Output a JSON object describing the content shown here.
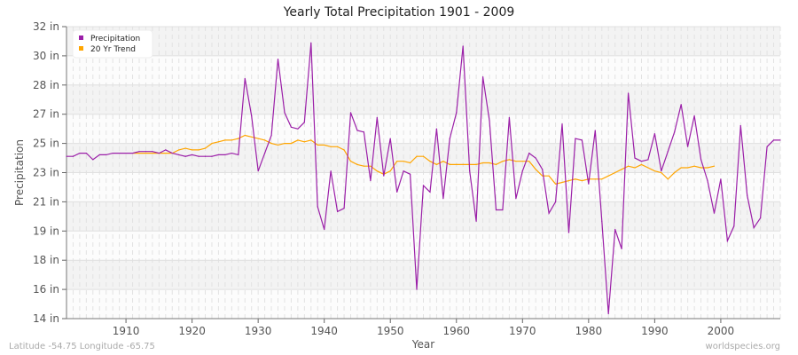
{
  "chart_data": {
    "type": "line",
    "title": "Yearly Total Precipitation 1901 - 2009",
    "xlabel": "Year",
    "ylabel": "Precipitation",
    "xlim": [
      1901,
      2009
    ],
    "ylim": [
      14,
      32
    ],
    "x_ticks": [
      1910,
      1920,
      1930,
      1940,
      1950,
      1960,
      1970,
      1980,
      1990,
      2000
    ],
    "y_ticks": [
      14,
      15.8,
      17.6,
      19.4,
      21.2,
      23,
      24.8,
      26.6,
      28.4,
      30.2,
      32
    ],
    "y_tick_labels": [
      "14 in",
      "16 in",
      "18 in",
      "19 in",
      "21 in",
      "23 in",
      "25 in",
      "27 in",
      "28 in",
      "30 in",
      "32 in"
    ],
    "grid": true,
    "legend_position": "top-left",
    "series": [
      {
        "name": "Precipitation",
        "color": "#9b1fa8",
        "x": [
          1901,
          1902,
          1903,
          1904,
          1905,
          1906,
          1907,
          1908,
          1909,
          1910,
          1911,
          1912,
          1913,
          1914,
          1915,
          1916,
          1917,
          1918,
          1919,
          1920,
          1921,
          1922,
          1923,
          1924,
          1925,
          1926,
          1927,
          1928,
          1929,
          1930,
          1931,
          1932,
          1933,
          1934,
          1935,
          1936,
          1937,
          1938,
          1939,
          1940,
          1941,
          1942,
          1943,
          1944,
          1945,
          1946,
          1947,
          1948,
          1949,
          1950,
          1951,
          1952,
          1953,
          1954,
          1955,
          1956,
          1957,
          1958,
          1959,
          1960,
          1961,
          1962,
          1963,
          1964,
          1965,
          1966,
          1967,
          1968,
          1969,
          1970,
          1971,
          1972,
          1973,
          1974,
          1975,
          1976,
          1977,
          1978,
          1979,
          1980,
          1981,
          1982,
          1983,
          1984,
          1985,
          1986,
          1987,
          1988,
          1989,
          1990,
          1991,
          1992,
          1993,
          1994,
          1995,
          1996,
          1997,
          1998,
          1999,
          2000,
          2001,
          2002,
          2003,
          2004,
          2005,
          2006,
          2007,
          2008,
          2009
        ],
        "values": [
          24.0,
          24.0,
          24.2,
          24.2,
          23.8,
          24.1,
          24.1,
          24.2,
          24.2,
          24.2,
          24.2,
          24.3,
          24.3,
          24.3,
          24.2,
          24.4,
          24.2,
          24.1,
          24.0,
          24.1,
          24.0,
          24.0,
          24.0,
          24.1,
          24.1,
          24.2,
          24.1,
          28.8,
          26.5,
          23.1,
          24.2,
          25.3,
          30.0,
          26.7,
          25.8,
          25.7,
          26.1,
          31.0,
          20.9,
          19.5,
          23.1,
          20.6,
          20.8,
          26.7,
          25.6,
          25.5,
          22.5,
          26.4,
          22.8,
          25.1,
          21.8,
          23.1,
          22.9,
          15.8,
          22.2,
          21.8,
          25.7,
          21.4,
          25.1,
          26.7,
          30.8,
          23.1,
          20.0,
          28.9,
          26.2,
          20.7,
          20.7,
          26.4,
          21.4,
          23.1,
          24.2,
          23.9,
          23.2,
          20.5,
          21.2,
          26.0,
          19.3,
          25.1,
          25.0,
          22.3,
          25.6,
          20.0,
          14.3,
          19.5,
          18.3,
          27.9,
          23.9,
          23.7,
          23.8,
          25.4,
          23.1,
          24.3,
          25.5,
          27.2,
          24.6,
          26.5,
          23.8,
          22.5,
          20.5,
          22.6,
          18.8,
          19.7,
          25.9,
          21.6,
          19.6,
          20.2,
          24.6,
          25.0,
          25.0
        ]
      },
      {
        "name": "20 Yr Trend",
        "color": "#ffa500",
        "x": [
          1911,
          1912,
          1913,
          1914,
          1915,
          1916,
          1917,
          1918,
          1919,
          1920,
          1921,
          1922,
          1923,
          1924,
          1925,
          1926,
          1927,
          1928,
          1929,
          1930,
          1931,
          1932,
          1933,
          1934,
          1935,
          1936,
          1937,
          1938,
          1939,
          1940,
          1941,
          1942,
          1943,
          1944,
          1945,
          1946,
          1947,
          1948,
          1949,
          1950,
          1951,
          1952,
          1953,
          1954,
          1955,
          1956,
          1957,
          1958,
          1959,
          1960,
          1961,
          1962,
          1963,
          1964,
          1965,
          1966,
          1967,
          1968,
          1969,
          1970,
          1971,
          1972,
          1973,
          1974,
          1975,
          1976,
          1977,
          1978,
          1979,
          1980,
          1981,
          1982,
          1983,
          1984,
          1985,
          1986,
          1987,
          1988,
          1989,
          1990,
          1991,
          1992,
          1993,
          1994,
          1995,
          1996,
          1997,
          1998,
          1999
        ],
        "values": [
          24.2,
          24.2,
          24.2,
          24.2,
          24.2,
          24.2,
          24.2,
          24.4,
          24.5,
          24.4,
          24.4,
          24.5,
          24.8,
          24.9,
          25.0,
          25.0,
          25.1,
          25.3,
          25.2,
          25.1,
          25.0,
          24.8,
          24.7,
          24.8,
          24.8,
          25.0,
          24.9,
          25.0,
          24.7,
          24.7,
          24.6,
          24.6,
          24.4,
          23.7,
          23.5,
          23.4,
          23.4,
          23.1,
          22.9,
          23.1,
          23.7,
          23.7,
          23.6,
          24.0,
          24.0,
          23.7,
          23.5,
          23.7,
          23.5,
          23.5,
          23.5,
          23.5,
          23.5,
          23.6,
          23.6,
          23.5,
          23.7,
          23.8,
          23.7,
          23.7,
          23.7,
          23.2,
          22.8,
          22.8,
          22.3,
          22.4,
          22.5,
          22.6,
          22.5,
          22.6,
          22.6,
          22.6,
          22.8,
          23.0,
          23.2,
          23.4,
          23.3,
          23.5,
          23.3,
          23.1,
          23.0,
          22.6,
          23.0,
          23.3,
          23.3,
          23.4,
          23.3,
          23.3,
          23.4
        ]
      }
    ]
  },
  "footer": {
    "location": "Latitude -54.75 Longitude -65.75",
    "source": "worldspecies.org"
  }
}
